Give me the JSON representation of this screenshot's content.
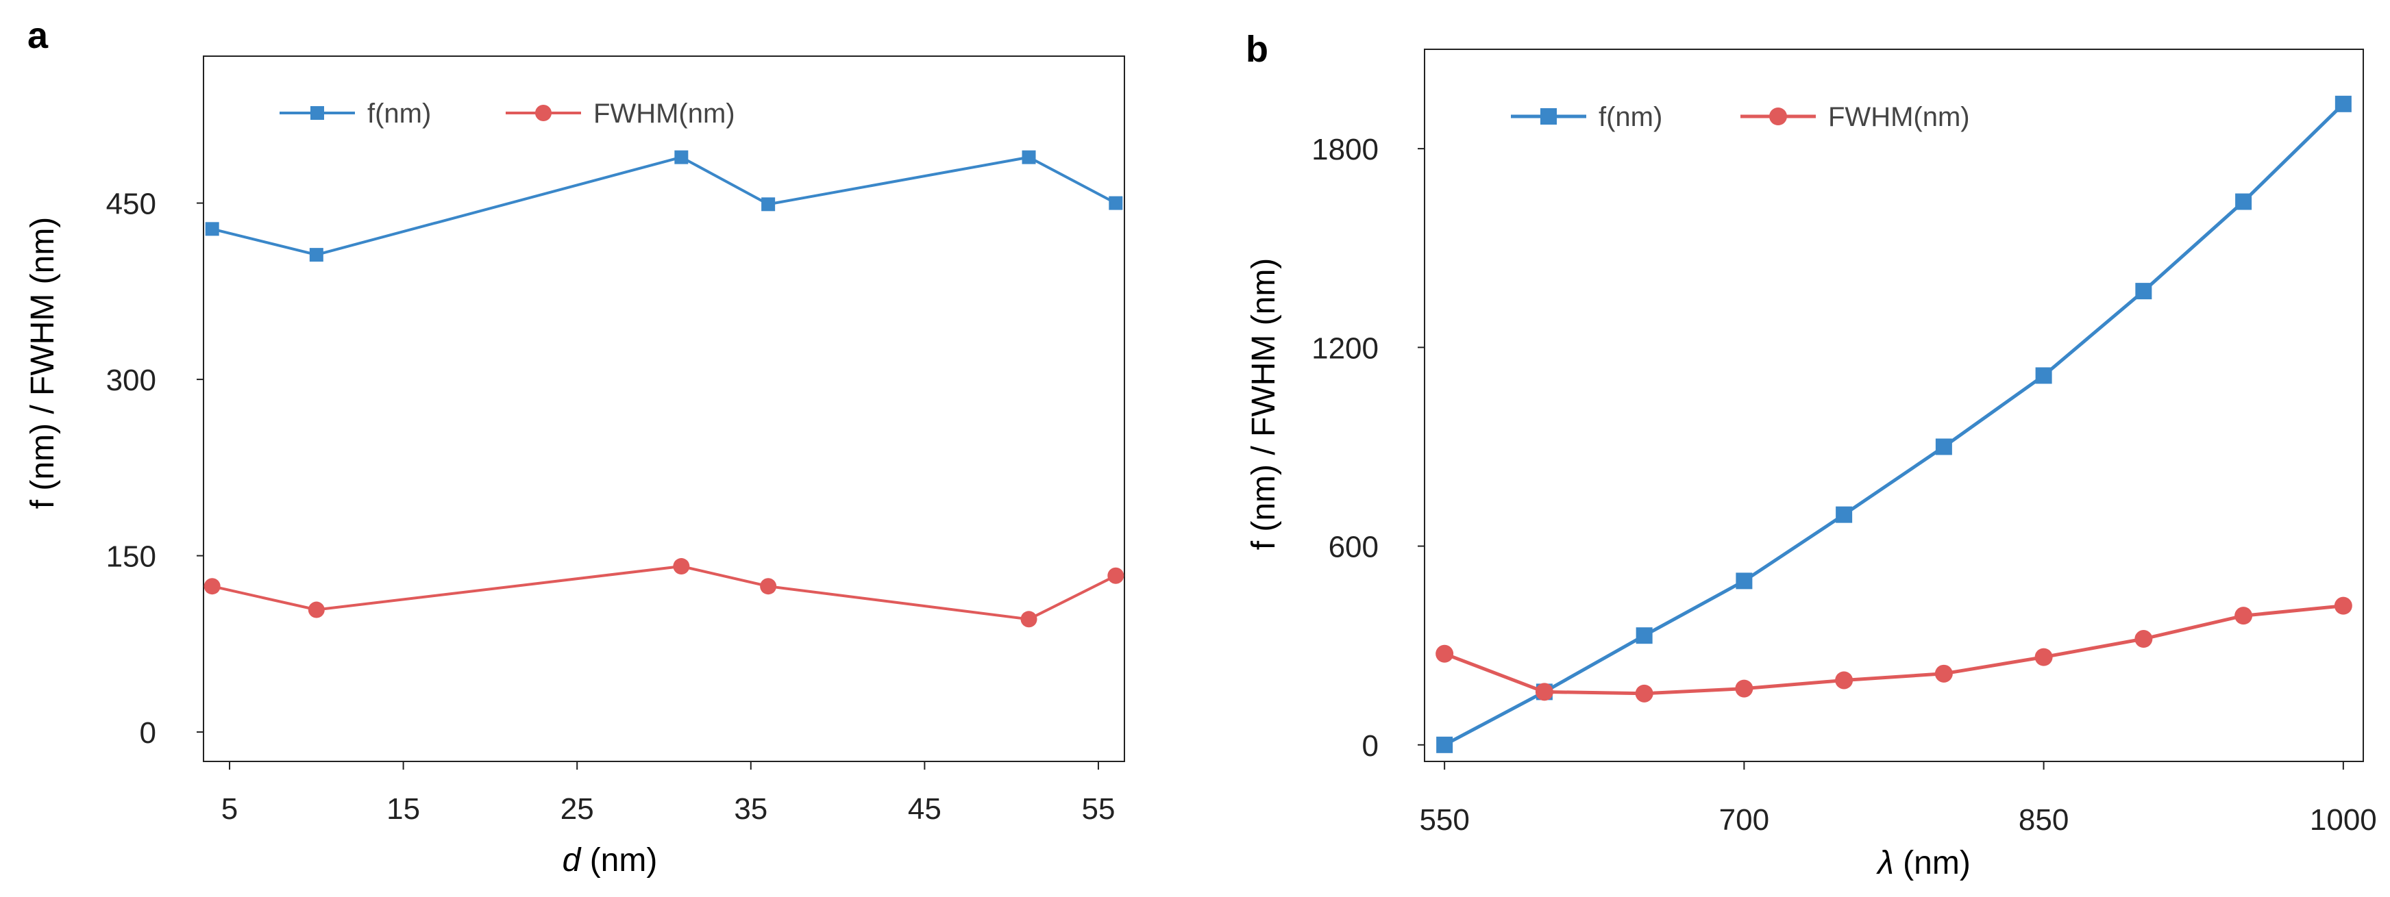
{
  "chart_data": [
    {
      "panel_label": "a",
      "type": "line",
      "title": "",
      "xlabel": {
        "italic": "d",
        "rest": " (nm)"
      },
      "ylabel": "f (nm) / FWHM (nm)",
      "xlim": [
        3.5,
        56.5
      ],
      "ylim": [
        -25,
        575
      ],
      "xtick_values": [
        5,
        15,
        25,
        35,
        45,
        55
      ],
      "xtick_labels": [
        "5",
        "15",
        "25",
        "35",
        "45",
        "55"
      ],
      "ytick_values": [
        0,
        150,
        300,
        450
      ],
      "ytick_labels": [
        "0",
        "150",
        "300",
        "450"
      ],
      "grid": false,
      "legend_position": "top-left",
      "series": [
        {
          "name": "f(nm)",
          "color": "#3a87c9",
          "marker": "square",
          "x": [
            4,
            10,
            31,
            36,
            51,
            56
          ],
          "y": [
            428,
            406,
            489,
            449,
            489,
            450
          ]
        },
        {
          "name": "FWHM(nm)",
          "color": "#e05a5a",
          "marker": "circle",
          "x": [
            4,
            10,
            31,
            36,
            51,
            56
          ],
          "y": [
            124,
            104,
            141,
            124,
            96,
            133
          ]
        }
      ]
    },
    {
      "panel_label": "b",
      "type": "line",
      "title": "",
      "xlabel": {
        "italic": "λ",
        "rest": " (nm)"
      },
      "ylabel": "f (nm) / FWHM (nm)",
      "xlim": [
        540,
        1010
      ],
      "ylim": [
        -50,
        2100
      ],
      "xtick_values": [
        550,
        700,
        850,
        1000
      ],
      "xtick_labels": [
        "550",
        "700",
        "850",
        "1000"
      ],
      "ytick_values": [
        0,
        600,
        1200,
        1800
      ],
      "ytick_labels": [
        "0",
        "600",
        "1200",
        "1800"
      ],
      "grid": false,
      "legend_position": "top-left",
      "series": [
        {
          "name": "f(nm)",
          "color": "#3a87c9",
          "marker": "square",
          "x": [
            550,
            600,
            650,
            700,
            750,
            800,
            850,
            900,
            950,
            1000
          ],
          "y": [
            0,
            160,
            330,
            495,
            695,
            900,
            1115,
            1370,
            1640,
            1935
          ]
        },
        {
          "name": "FWHM(nm)",
          "color": "#e05a5a",
          "marker": "circle",
          "x": [
            550,
            600,
            650,
            700,
            750,
            800,
            850,
            900,
            950,
            1000
          ],
          "y": [
            275,
            160,
            155,
            170,
            195,
            215,
            265,
            320,
            390,
            420
          ]
        }
      ]
    }
  ]
}
